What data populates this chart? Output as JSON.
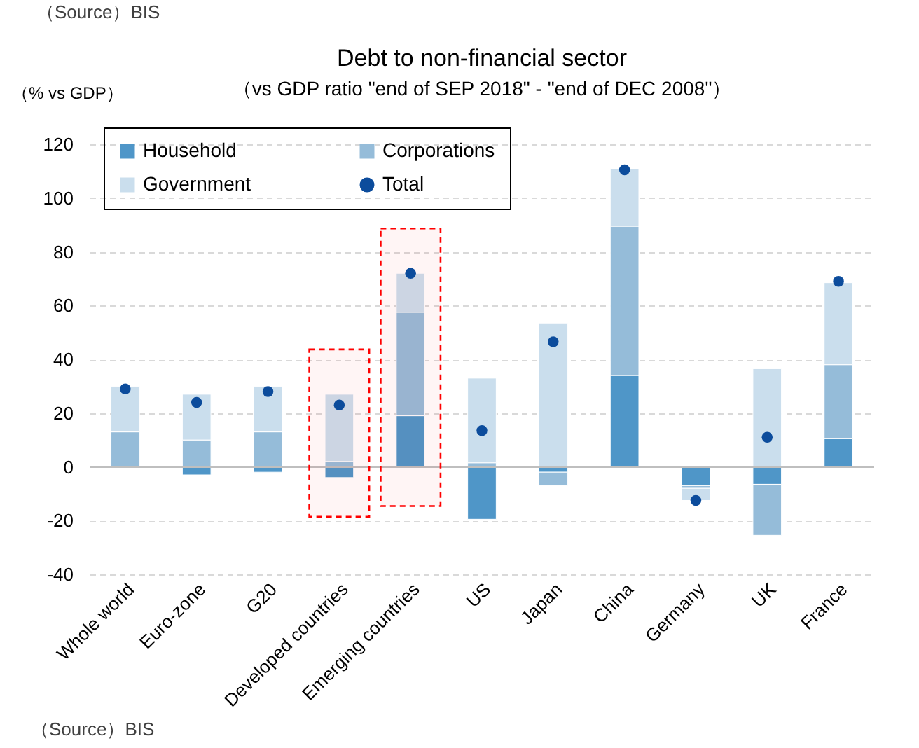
{
  "chart_data": {
    "type": "bar",
    "title": "Debt to non-financial sector",
    "subtitle": "（vs GDP ratio \"end of SEP 2018\" - \"end of DEC 2008\"）",
    "ylabel": "（% vs GDP）",
    "annotations": [
      "（Source）BIS",
      "（Source）BIS"
    ],
    "categories": [
      "Whole world",
      "Euro-zone",
      "G20",
      "Developed countries",
      "Emerging countries",
      "US",
      "Japan",
      "China",
      "Germany",
      "UK",
      "France"
    ],
    "stacked": true,
    "series": [
      {
        "name": "Household",
        "color": "#4f96c8",
        "values": [
          0,
          -3,
          -2,
          -4,
          19,
          -19.5,
          -2,
          34,
          -7,
          -6.5,
          10.5
        ]
      },
      {
        "name": "Corporations",
        "color": "#95bcd9",
        "values": [
          13,
          10,
          13,
          2,
          38.5,
          1.5,
          -5,
          55.5,
          -1,
          -19,
          27.5
        ]
      },
      {
        "name": "Government",
        "color": "#cadeed",
        "values": [
          17,
          17,
          17,
          25,
          14.5,
          31.5,
          53.5,
          21.5,
          -4.5,
          36.5,
          30.5
        ]
      },
      {
        "name": "Total",
        "type": "scatter",
        "marker": "circle",
        "color": "#0c4c9c",
        "values": [
          29,
          24,
          28,
          23,
          72,
          13.5,
          46.5,
          110.5,
          -12.5,
          11,
          69
        ]
      }
    ],
    "ylim": [
      -40,
      120
    ],
    "yticks": [
      -40,
      -20,
      0,
      20,
      40,
      60,
      80,
      100,
      120
    ],
    "grid": "y",
    "legend": "top left",
    "ref_lines": [
      {
        "axis": "y",
        "value": 0,
        "color": "#bfbfbf"
      }
    ],
    "bands": [
      {
        "axis": "x",
        "from": "Developed countries",
        "to": "Developed countries",
        "color": "#ff0000"
      },
      {
        "axis": "x",
        "from": "Emerging countries",
        "to": "Emerging countries",
        "color": "#ff0000"
      }
    ]
  }
}
